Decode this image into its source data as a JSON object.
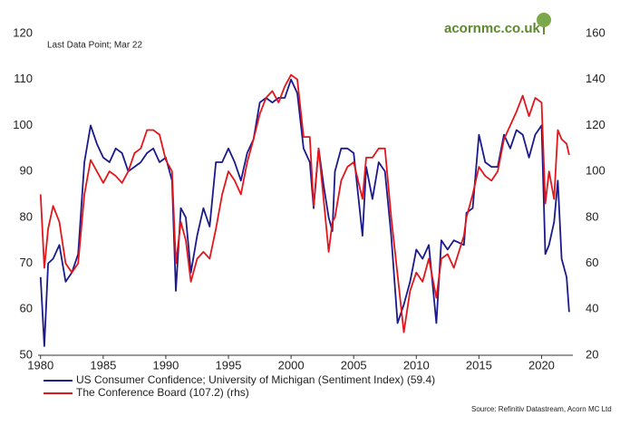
{
  "chart_data": {
    "type": "line",
    "subtitle": "Last Data Point; Mar 22",
    "brand": "acornmc.co.uk",
    "source": "Source: Refinitiv Datastream, Acorn MC Ltd",
    "x": [
      1980.0,
      1980.3,
      1980.6,
      1981.0,
      1981.5,
      1982.0,
      1982.5,
      1983.0,
      1983.5,
      1984.0,
      1984.5,
      1985.0,
      1985.5,
      1986.0,
      1986.5,
      1987.0,
      1987.5,
      1988.0,
      1988.5,
      1989.0,
      1989.5,
      1990.0,
      1990.5,
      1990.8,
      1991.2,
      1991.6,
      1992.0,
      1992.5,
      1993.0,
      1993.5,
      1994.0,
      1994.5,
      1995.0,
      1995.5,
      1996.0,
      1996.5,
      1997.0,
      1997.5,
      1998.0,
      1998.5,
      1999.0,
      1999.5,
      2000.0,
      2000.5,
      2001.0,
      2001.5,
      2001.8,
      2002.2,
      2002.6,
      2003.0,
      2003.3,
      2003.5,
      2004.0,
      2004.5,
      2005.0,
      2005.7,
      2006.0,
      2006.5,
      2007.0,
      2007.5,
      2008.0,
      2008.5,
      2009.0,
      2009.5,
      2010.0,
      2010.5,
      2011.0,
      2011.6,
      2012.0,
      2012.5,
      2013.0,
      2013.8,
      2014.0,
      2014.5,
      2015.0,
      2015.5,
      2016.0,
      2016.5,
      2017.0,
      2017.5,
      2018.0,
      2018.5,
      2019.0,
      2019.5,
      2020.0,
      2020.3,
      2020.6,
      2021.0,
      2021.3,
      2021.6,
      2022.0,
      2022.2
    ],
    "series": [
      {
        "name": "US Consumer Confidence; University of Michigan (Sentiment Index) (59.4)",
        "color": "#1b1a8a",
        "axis": "y",
        "values": [
          67,
          52,
          70,
          71,
          74,
          66,
          68,
          72,
          92,
          100,
          96,
          93,
          92,
          95,
          94,
          90,
          91,
          92,
          94,
          95,
          92,
          93,
          88,
          64,
          82,
          80,
          68,
          76,
          82,
          78,
          92,
          92,
          95,
          92,
          88,
          94,
          97,
          105,
          106,
          105,
          106,
          106,
          110,
          107,
          95,
          92,
          82,
          95,
          87,
          80,
          77,
          90,
          95,
          95,
          94,
          76,
          91,
          84,
          92,
          90,
          76,
          57,
          61,
          66,
          73,
          71,
          74,
          57,
          75,
          73,
          75,
          74,
          81,
          82,
          98,
          92,
          91,
          91,
          98,
          95,
          99,
          98,
          93,
          98,
          100,
          72,
          74,
          79,
          88,
          71,
          67,
          59.4
        ]
      },
      {
        "name": "The Conference Board (107.2) (rhs)",
        "color": "#e3161b",
        "axis": "y2",
        "values": [
          90,
          58,
          75,
          85,
          78,
          60,
          56,
          60,
          90,
          105,
          100,
          95,
          100,
          98,
          95,
          100,
          108,
          110,
          118,
          118,
          116,
          105,
          100,
          60,
          78,
          70,
          52,
          62,
          65,
          62,
          75,
          90,
          100,
          96,
          90,
          104,
          114,
          125,
          132,
          135,
          130,
          137,
          142,
          140,
          115,
          115,
          85,
          110,
          88,
          65,
          78,
          80,
          96,
          102,
          104,
          88,
          106,
          106,
          110,
          110,
          80,
          55,
          30,
          48,
          56,
          52,
          62,
          45,
          62,
          64,
          58,
          72,
          80,
          90,
          102,
          98,
          96,
          100,
          114,
          120,
          126,
          133,
          124,
          132,
          130,
          86,
          100,
          88,
          118,
          114,
          112,
          107.2
        ]
      }
    ],
    "xlim": [
      1979.8,
      2022.5
    ],
    "xticks": [
      1980,
      1985,
      1990,
      1995,
      2000,
      2005,
      2010,
      2015,
      2020
    ],
    "ylim": [
      50,
      120
    ],
    "yticks": [
      50,
      60,
      70,
      80,
      90,
      100,
      110,
      120
    ],
    "y2lim": [
      20,
      160
    ],
    "y2ticks": [
      20,
      40,
      60,
      80,
      100,
      120,
      140,
      160
    ]
  }
}
